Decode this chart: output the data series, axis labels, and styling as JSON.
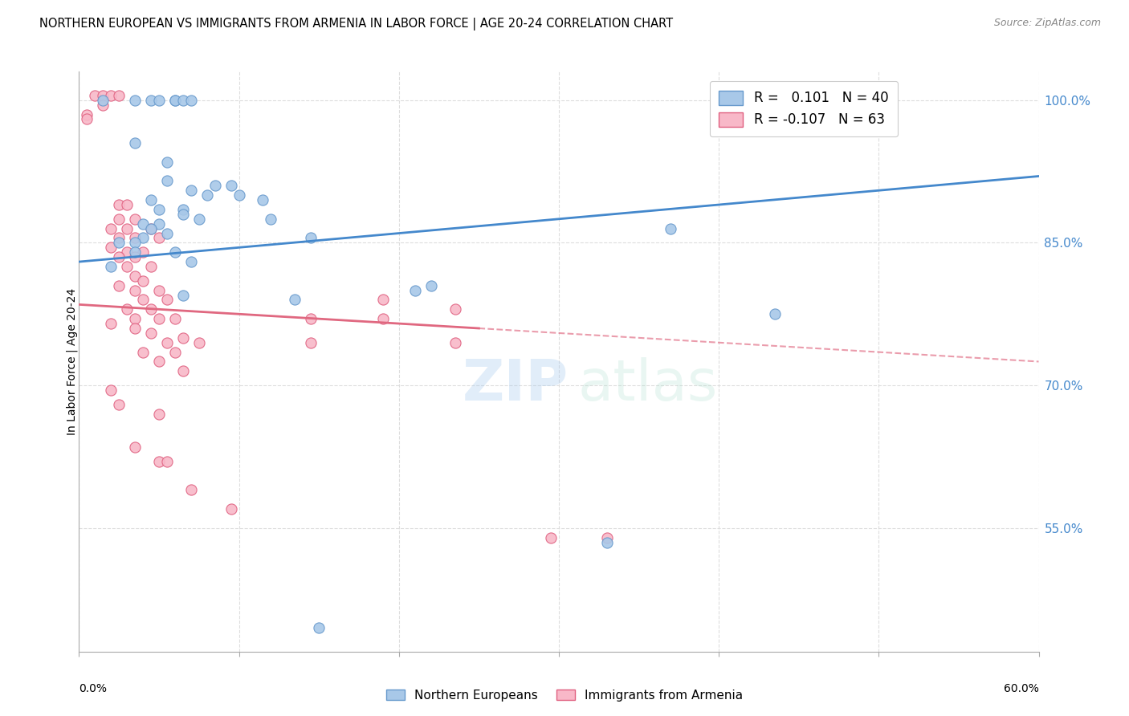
{
  "title": "NORTHERN EUROPEAN VS IMMIGRANTS FROM ARMENIA IN LABOR FORCE | AGE 20-24 CORRELATION CHART",
  "source": "Source: ZipAtlas.com",
  "ylabel": "In Labor Force | Age 20-24",
  "right_yticks": [
    55.0,
    70.0,
    85.0,
    100.0
  ],
  "xmin": 0.0,
  "xmax": 60.0,
  "ymin": 42.0,
  "ymax": 103.0,
  "blue_color": "#a8c8e8",
  "pink_color": "#f8b8c8",
  "blue_edge_color": "#6699cc",
  "pink_edge_color": "#e06080",
  "blue_line_color": "#4488cc",
  "pink_line_color": "#e06880",
  "blue_line_y0": 83.0,
  "blue_line_y1": 92.0,
  "pink_line_y0": 78.5,
  "pink_line_y1": 72.5,
  "pink_solid_xmax": 25.0,
  "blue_dots": [
    [
      1.5,
      100.0
    ],
    [
      3.5,
      100.0
    ],
    [
      4.5,
      100.0
    ],
    [
      5.0,
      100.0
    ],
    [
      6.0,
      100.0
    ],
    [
      6.0,
      100.0
    ],
    [
      6.5,
      100.0
    ],
    [
      7.0,
      100.0
    ],
    [
      3.5,
      95.5
    ],
    [
      5.5,
      93.5
    ],
    [
      5.5,
      91.5
    ],
    [
      8.5,
      91.0
    ],
    [
      9.5,
      91.0
    ],
    [
      7.0,
      90.5
    ],
    [
      8.0,
      90.0
    ],
    [
      10.0,
      90.0
    ],
    [
      4.5,
      89.5
    ],
    [
      11.5,
      89.5
    ],
    [
      5.0,
      88.5
    ],
    [
      6.5,
      88.5
    ],
    [
      6.5,
      88.0
    ],
    [
      7.5,
      87.5
    ],
    [
      12.0,
      87.5
    ],
    [
      4.0,
      87.0
    ],
    [
      5.0,
      87.0
    ],
    [
      4.5,
      86.5
    ],
    [
      5.5,
      86.0
    ],
    [
      4.0,
      85.5
    ],
    [
      14.5,
      85.5
    ],
    [
      2.5,
      85.0
    ],
    [
      3.5,
      85.0
    ],
    [
      3.5,
      84.0
    ],
    [
      6.0,
      84.0
    ],
    [
      7.0,
      83.0
    ],
    [
      2.0,
      82.5
    ],
    [
      22.0,
      80.5
    ],
    [
      21.0,
      80.0
    ],
    [
      6.5,
      79.5
    ],
    [
      13.5,
      79.0
    ],
    [
      37.0,
      86.5
    ],
    [
      43.5,
      77.5
    ],
    [
      33.0,
      53.5
    ],
    [
      15.0,
      44.5
    ]
  ],
  "pink_dots": [
    [
      1.0,
      100.5
    ],
    [
      1.5,
      100.5
    ],
    [
      2.0,
      100.5
    ],
    [
      2.5,
      100.5
    ],
    [
      1.5,
      99.5
    ],
    [
      0.5,
      98.5
    ],
    [
      0.5,
      98.0
    ],
    [
      2.5,
      89.0
    ],
    [
      3.0,
      89.0
    ],
    [
      2.5,
      87.5
    ],
    [
      3.5,
      87.5
    ],
    [
      2.0,
      86.5
    ],
    [
      3.0,
      86.5
    ],
    [
      4.5,
      86.5
    ],
    [
      2.5,
      85.5
    ],
    [
      3.5,
      85.5
    ],
    [
      5.0,
      85.5
    ],
    [
      2.0,
      84.5
    ],
    [
      3.0,
      84.0
    ],
    [
      4.0,
      84.0
    ],
    [
      2.5,
      83.5
    ],
    [
      3.5,
      83.5
    ],
    [
      3.0,
      82.5
    ],
    [
      4.5,
      82.5
    ],
    [
      3.5,
      81.5
    ],
    [
      4.0,
      81.0
    ],
    [
      2.5,
      80.5
    ],
    [
      3.5,
      80.0
    ],
    [
      5.0,
      80.0
    ],
    [
      4.0,
      79.0
    ],
    [
      5.5,
      79.0
    ],
    [
      3.0,
      78.0
    ],
    [
      4.5,
      78.0
    ],
    [
      3.5,
      77.0
    ],
    [
      5.0,
      77.0
    ],
    [
      6.0,
      77.0
    ],
    [
      2.0,
      76.5
    ],
    [
      3.5,
      76.0
    ],
    [
      4.5,
      75.5
    ],
    [
      6.5,
      75.0
    ],
    [
      5.5,
      74.5
    ],
    [
      7.5,
      74.5
    ],
    [
      4.0,
      73.5
    ],
    [
      6.0,
      73.5
    ],
    [
      5.0,
      72.5
    ],
    [
      6.5,
      71.5
    ],
    [
      14.5,
      77.0
    ],
    [
      14.5,
      74.5
    ],
    [
      19.0,
      79.0
    ],
    [
      19.0,
      77.0
    ],
    [
      23.5,
      78.0
    ],
    [
      23.5,
      74.5
    ],
    [
      2.0,
      69.5
    ],
    [
      2.5,
      68.0
    ],
    [
      5.0,
      67.0
    ],
    [
      3.5,
      63.5
    ],
    [
      5.0,
      62.0
    ],
    [
      5.5,
      62.0
    ],
    [
      7.0,
      59.0
    ],
    [
      9.5,
      57.0
    ],
    [
      29.5,
      54.0
    ],
    [
      33.0,
      54.0
    ]
  ],
  "watermark_zip": "ZIP",
  "watermark_atlas": "atlas",
  "background_color": "#ffffff",
  "grid_color": "#dddddd"
}
